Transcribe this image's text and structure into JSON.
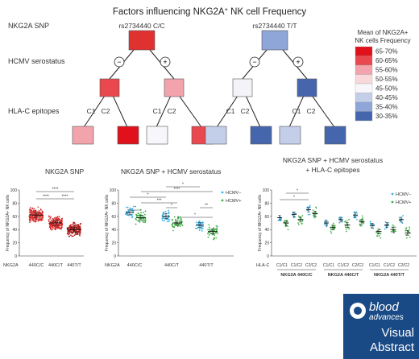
{
  "title": "Factors influencing NKG2A",
  "title_sup": "+",
  "title_tail": " NK cell Frequency",
  "tree": {
    "row_labels": {
      "snp": "NKG2A SNP",
      "hcmv": "HCMV serostatus",
      "hla": "HLA-C epitopes"
    },
    "left_root": "rs2734440 C/C",
    "right_root": "rs2734440 T/T",
    "neg_sign": "−",
    "pos_sign": "+",
    "leaf_labels": [
      "C1",
      "C2",
      "C1",
      "C2"
    ],
    "colors": {
      "left_root": "#e03131",
      "left_neg": "#e8484e",
      "left_pos": "#f2a3ab",
      "left_leaves": [
        "#f2a3ab",
        "#e0111b",
        "#f7f7fb",
        "#e8484e"
      ],
      "right_root": "#8fa6d8",
      "right_neg": "#f4f4f8",
      "right_pos": "#4566ad",
      "right_leaves": [
        "#c3cee8",
        "#4566ad",
        "#c3cee8",
        "#4566ad"
      ]
    }
  },
  "legend": {
    "title_line1": "Mean of NKG2A+",
    "title_line2": "NK cells Frequency",
    "items": [
      {
        "label": "65-70%",
        "color": "#e0111b"
      },
      {
        "label": "60-65%",
        "color": "#e8484e"
      },
      {
        "label": "55-60%",
        "color": "#f2a3ab"
      },
      {
        "label": "50-55%",
        "color": "#f9d8dc"
      },
      {
        "label": "45-50%",
        "color": "#f7f7fb"
      },
      {
        "label": "40-45%",
        "color": "#c3cee8"
      },
      {
        "label": "35-40%",
        "color": "#8fa6d8"
      },
      {
        "label": "30-35%",
        "color": "#4566ad"
      }
    ]
  },
  "panel1": {
    "title": "NKG2A SNP",
    "ylabel": "Frequency of NKG2A+ NK cells",
    "yticks": [
      "0",
      "20",
      "40",
      "60",
      "80",
      "100"
    ],
    "row_label": "NKG2A",
    "groups": [
      "440C/C",
      "440C/T",
      "440T/T"
    ],
    "sig": [
      "****",
      "****",
      "****"
    ]
  },
  "panel2": {
    "title": "NKG2A SNP + HCMV serostatus",
    "ylabel": "Frequency of NKG2A+ NK cells",
    "yticks": [
      "0",
      "20",
      "40",
      "60",
      "80",
      "100"
    ],
    "row_label": "NKG2A",
    "groups": [
      "440C/C",
      "440C/T",
      "440T/T"
    ],
    "legend": [
      "HCMV−",
      "HCMV+"
    ],
    "sig": [
      "*",
      "***",
      "*",
      "****",
      "*",
      "*",
      "**",
      "*"
    ]
  },
  "panel3": {
    "title_line1": "NKG2A SNP + HCMV serostatus",
    "title_line2": "+ HLA-C epitopes",
    "ylabel": "Frequency of NKG2A+ NK cells",
    "yticks": [
      "0",
      "20",
      "40",
      "60",
      "80",
      "100"
    ],
    "row_label": "HLA-C",
    "subgroups": [
      "C1/C1",
      "C1/C2",
      "C2/C2"
    ],
    "groups": [
      "NKG2A 440C/C",
      "NKG2A 440C/T",
      "NKG2A 440T/T"
    ],
    "legend": [
      "HCMV−",
      "HCMV+"
    ],
    "sig": [
      "*",
      "*"
    ]
  },
  "series_colors": {
    "red": "#d42a2a",
    "darkred": "#b01c1c",
    "blue": "#39b3e6",
    "green": "#3cb043"
  },
  "badge": {
    "brand1": "blood",
    "brand2": "advances",
    "line1": "Visual",
    "line2": "Abstract"
  }
}
